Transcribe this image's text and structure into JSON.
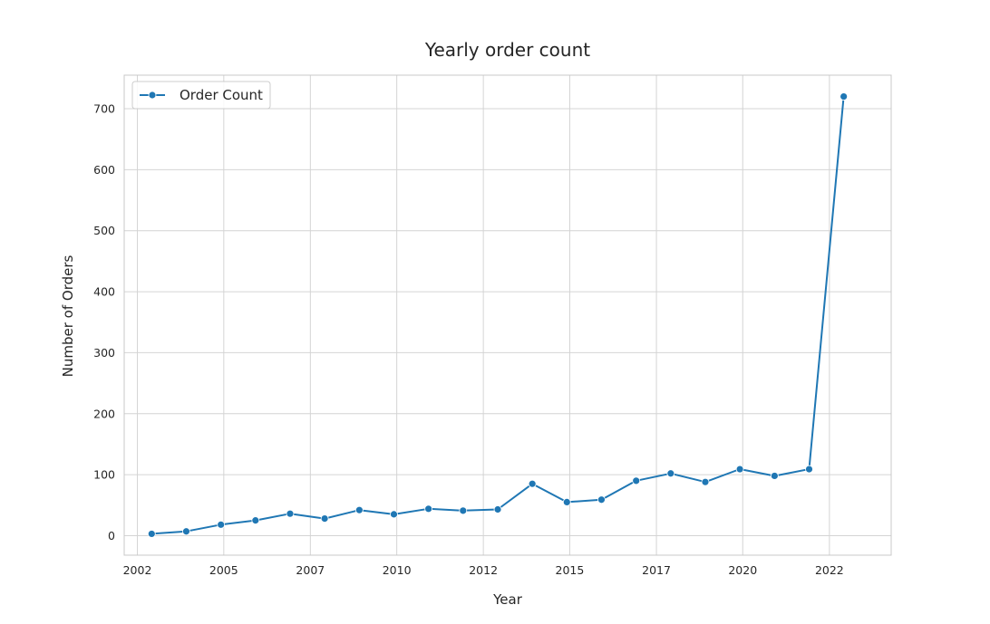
{
  "chart_data": {
    "type": "line",
    "title": "Yearly order count",
    "xlabel": "Year",
    "ylabel": "Number of Orders",
    "x_axis_type": "date",
    "xlim": [
      "2001-08-15",
      "2023-10-15"
    ],
    "ylim": [
      -32,
      755
    ],
    "xticks": [
      {
        "date": "2002-01-01",
        "label": "2002"
      },
      {
        "date": "2004-07-01",
        "label": "2005"
      },
      {
        "date": "2007-01-01",
        "label": "2007"
      },
      {
        "date": "2009-07-01",
        "label": "2010"
      },
      {
        "date": "2012-01-01",
        "label": "2012"
      },
      {
        "date": "2014-07-01",
        "label": "2015"
      },
      {
        "date": "2017-01-01",
        "label": "2017"
      },
      {
        "date": "2019-07-01",
        "label": "2020"
      },
      {
        "date": "2022-01-01",
        "label": "2022"
      }
    ],
    "yticks": [
      0,
      100,
      200,
      300,
      400,
      500,
      600,
      700
    ],
    "grid": true,
    "legend": {
      "position": "top-left",
      "entries": [
        "Order Count"
      ]
    },
    "series": [
      {
        "name": "Order Count",
        "color": "#1f77b4",
        "marker": "circle",
        "points": [
          {
            "x": "2002-06-01",
            "y": 3
          },
          {
            "x": "2003-06-01",
            "y": 7
          },
          {
            "x": "2004-06-01",
            "y": 18
          },
          {
            "x": "2005-06-01",
            "y": 25
          },
          {
            "x": "2006-06-01",
            "y": 36
          },
          {
            "x": "2007-06-01",
            "y": 28
          },
          {
            "x": "2008-06-01",
            "y": 42
          },
          {
            "x": "2009-06-01",
            "y": 35
          },
          {
            "x": "2010-06-01",
            "y": 44
          },
          {
            "x": "2011-06-01",
            "y": 41
          },
          {
            "x": "2012-06-01",
            "y": 43
          },
          {
            "x": "2013-06-01",
            "y": 85
          },
          {
            "x": "2014-06-01",
            "y": 55
          },
          {
            "x": "2015-06-01",
            "y": 59
          },
          {
            "x": "2016-06-01",
            "y": 90
          },
          {
            "x": "2017-06-01",
            "y": 102
          },
          {
            "x": "2018-06-01",
            "y": 88
          },
          {
            "x": "2019-06-01",
            "y": 109
          },
          {
            "x": "2020-06-01",
            "y": 98
          },
          {
            "x": "2021-06-01",
            "y": 109
          },
          {
            "x": "2022-06-01",
            "y": 720
          }
        ]
      }
    ]
  }
}
